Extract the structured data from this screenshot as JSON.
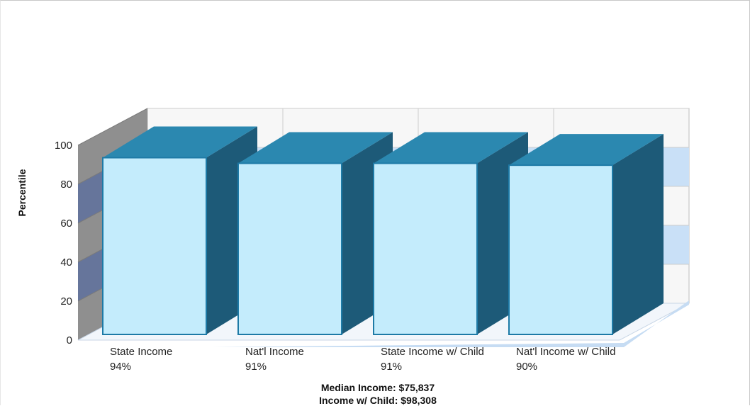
{
  "chart_data": {
    "type": "bar",
    "ylabel": "Percentile",
    "ylim": [
      0,
      100
    ],
    "yticks": [
      0,
      20,
      40,
      60,
      80,
      100
    ],
    "categories": [
      "State Income",
      "Nat'l Income",
      "State Income w/ Child",
      "Nat'l Income w/ Child"
    ],
    "values": [
      94,
      91,
      91,
      90
    ],
    "value_labels": [
      "94%",
      "91%",
      "91%",
      "90%"
    ],
    "footnotes": [
      "Median Income: $75,837",
      "Income w/ Child: $98,308"
    ],
    "grid": true,
    "three_d": true
  },
  "colors": {
    "bar_front": "#c4ecfc",
    "bar_front_border": "#1e7aa6",
    "bar_top": "#2b88b0",
    "bar_side": "#1d5a78",
    "floor": "#c6dcf3",
    "left_wall": "#8f8f8f",
    "left_wall_band": "#66759b",
    "back_wall": "#f7f7f7",
    "back_wall_band": "#c9e0f7",
    "grid": "#cccccc"
  }
}
